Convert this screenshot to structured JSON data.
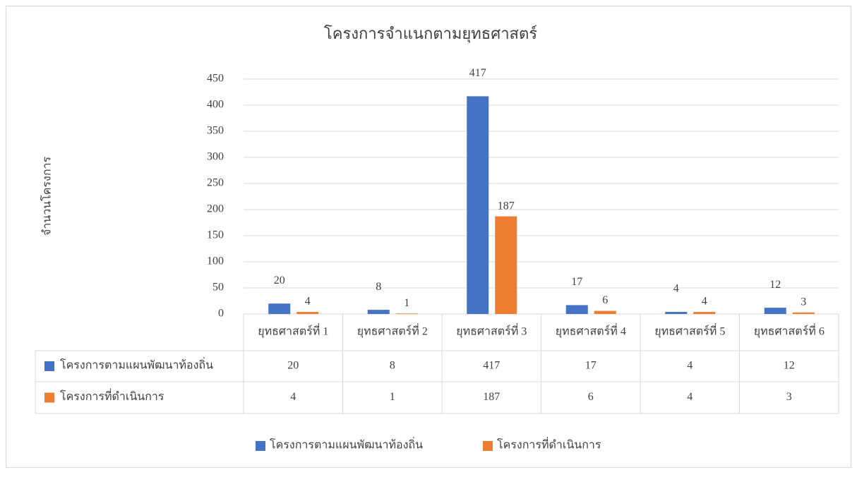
{
  "chart_data": {
    "type": "bar",
    "title": "โครงการจำแนกตามยุทธศาสตร์",
    "y_label": "จำนวนโครงการ",
    "categories": [
      "ยุทธศาสตร์ที่ 1",
      "ยุทธศาสตร์ที่ 2",
      "ยุทธศาสตร์ที่ 3",
      "ยุทธศาสตร์ที่ 4",
      "ยุทธศาสตร์ที่ 5",
      "ยุทธศาสตร์ที่ 6"
    ],
    "series": [
      {
        "name": "โครงการตามแผนพัฒนาท้องถิ่น",
        "color": "#4472c4",
        "values": [
          20,
          8,
          417,
          17,
          4,
          12
        ]
      },
      {
        "name": "โครงการที่ดำเนินการ",
        "color": "#ed7d31",
        "values": [
          4,
          1,
          187,
          6,
          4,
          3
        ]
      }
    ],
    "ylim": [
      0,
      450
    ],
    "yticks": [
      0,
      50,
      100,
      150,
      200,
      250,
      300,
      350,
      400,
      450
    ],
    "grid": true,
    "legend": "bottom"
  }
}
